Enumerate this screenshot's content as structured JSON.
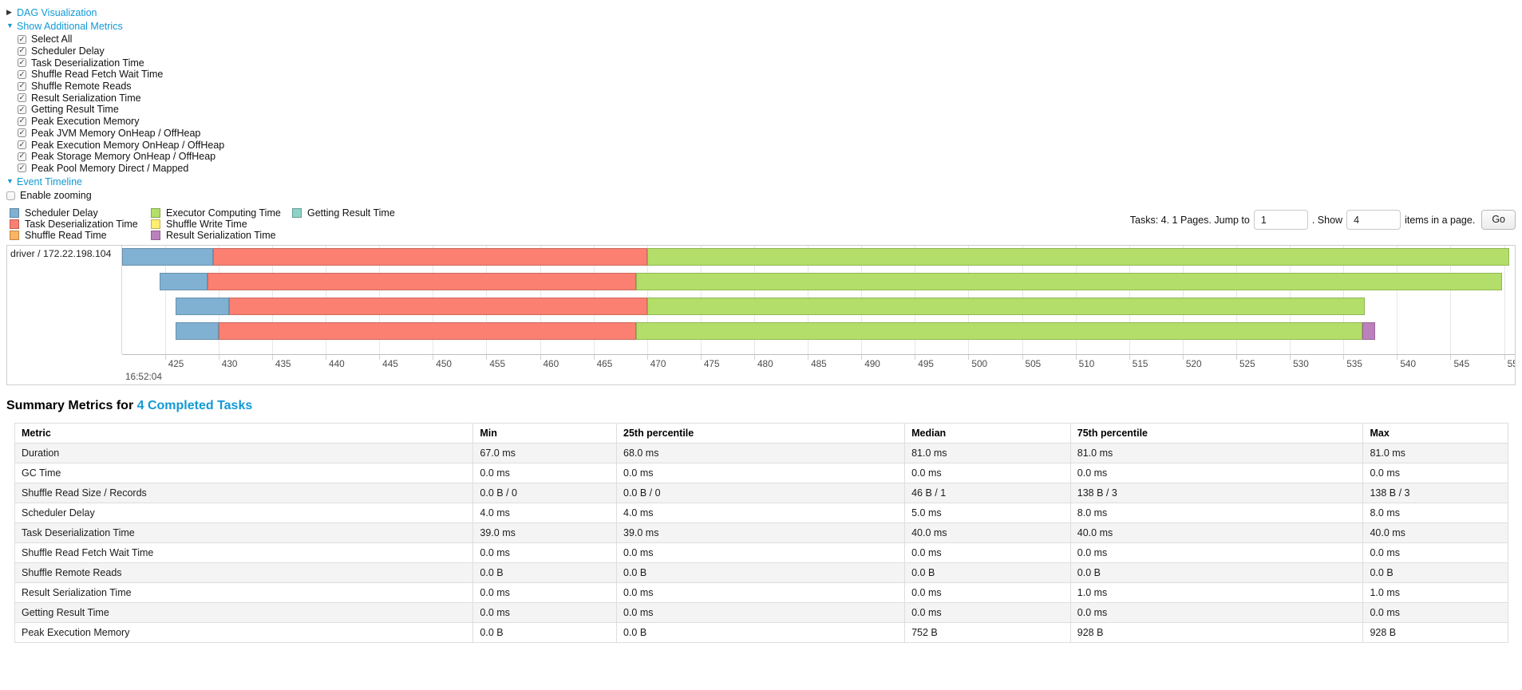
{
  "theme": {
    "link_color": "#1199d6"
  },
  "controls": {
    "dag_toggle": {
      "label": "DAG Visualization",
      "state": "collapsed"
    },
    "metrics_toggle": {
      "label": "Show Additional Metrics",
      "state": "expanded"
    },
    "metric_checkboxes": [
      {
        "label": "Select All",
        "checked": true
      },
      {
        "label": "Scheduler Delay",
        "checked": true
      },
      {
        "label": "Task Deserialization Time",
        "checked": true
      },
      {
        "label": "Shuffle Read Fetch Wait Time",
        "checked": true
      },
      {
        "label": "Shuffle Remote Reads",
        "checked": true
      },
      {
        "label": "Result Serialization Time",
        "checked": true
      },
      {
        "label": "Getting Result Time",
        "checked": true
      },
      {
        "label": "Peak Execution Memory",
        "checked": true
      },
      {
        "label": "Peak JVM Memory OnHeap / OffHeap",
        "checked": true
      },
      {
        "label": "Peak Execution Memory OnHeap / OffHeap",
        "checked": true
      },
      {
        "label": "Peak Storage Memory OnHeap / OffHeap",
        "checked": true
      },
      {
        "label": "Peak Pool Memory Direct / Mapped",
        "checked": true
      }
    ],
    "event_timeline_toggle": {
      "label": "Event Timeline",
      "state": "expanded"
    },
    "enable_zooming": {
      "label": "Enable zooming",
      "checked": false
    }
  },
  "pager": {
    "summary": "Tasks: 4. 1 Pages. Jump to",
    "jump_value": "1",
    "mid": ". Show",
    "show_value": "4",
    "suffix": "items in a page.",
    "go_label": "Go"
  },
  "legend": {
    "columns": [
      [
        {
          "label": "Scheduler Delay",
          "color": "#80B1D3"
        },
        {
          "label": "Task Deserialization Time",
          "color": "#FB8072"
        },
        {
          "label": "Shuffle Read Time",
          "color": "#FDB462"
        }
      ],
      [
        {
          "label": "Executor Computing Time",
          "color": "#B3DE69"
        },
        {
          "label": "Shuffle Write Time",
          "color": "#FFED6F"
        },
        {
          "label": "Result Serialization Time",
          "color": "#BC80BD"
        }
      ],
      [
        {
          "label": "Getting Result Time",
          "color": "#8DD3C7"
        }
      ]
    ]
  },
  "chart_data": {
    "type": "timeline-gantt",
    "group_label": "driver / 172.22.198.104",
    "axis": {
      "min": 421,
      "max": 551,
      "tick_start": 425,
      "tick_end": 550,
      "tick_step": 5,
      "major_label": "16:52:04",
      "units": "ms within second"
    },
    "colors": {
      "scheduler_delay": "#80B1D3",
      "task_deserialization": "#FB8072",
      "shuffle_read": "#FDB462",
      "executor_computing": "#B3DE69",
      "shuffle_write": "#FFED6F",
      "result_serialization": "#BC80BD",
      "getting_result": "#8DD3C7"
    },
    "tasks": [
      {
        "row": 0,
        "segments": [
          {
            "type": "scheduler_delay",
            "start": 421.0,
            "end": 429.5
          },
          {
            "type": "task_deserialization",
            "start": 429.5,
            "end": 470.0
          },
          {
            "type": "executor_computing",
            "start": 470.0,
            "end": 550.5
          }
        ]
      },
      {
        "row": 1,
        "segments": [
          {
            "type": "scheduler_delay",
            "start": 424.5,
            "end": 429.0
          },
          {
            "type": "task_deserialization",
            "start": 429.0,
            "end": 469.0
          },
          {
            "type": "executor_computing",
            "start": 469.0,
            "end": 549.8
          }
        ]
      },
      {
        "row": 2,
        "segments": [
          {
            "type": "scheduler_delay",
            "start": 426.0,
            "end": 431.0
          },
          {
            "type": "task_deserialization",
            "start": 431.0,
            "end": 470.0
          },
          {
            "type": "executor_computing",
            "start": 470.0,
            "end": 537.0
          }
        ]
      },
      {
        "row": 3,
        "segments": [
          {
            "type": "scheduler_delay",
            "start": 426.0,
            "end": 430.0
          },
          {
            "type": "task_deserialization",
            "start": 430.0,
            "end": 469.0
          },
          {
            "type": "executor_computing",
            "start": 469.0,
            "end": 536.8
          },
          {
            "type": "result_serialization",
            "start": 536.8,
            "end": 538.0
          }
        ]
      }
    ]
  },
  "summary": {
    "title_prefix": "Summary Metrics for ",
    "title_link": "4 Completed Tasks",
    "table": {
      "columns": [
        "Metric",
        "Min",
        "25th percentile",
        "Median",
        "75th percentile",
        "Max"
      ],
      "column_widths": [
        "30.7%",
        "9.6%",
        "19.3%",
        "11.1%",
        "19.6%",
        "9.7%"
      ],
      "rows": [
        [
          "Duration",
          "67.0 ms",
          "68.0 ms",
          "81.0 ms",
          "81.0 ms",
          "81.0 ms"
        ],
        [
          "GC Time",
          "0.0 ms",
          "0.0 ms",
          "0.0 ms",
          "0.0 ms",
          "0.0 ms"
        ],
        [
          "Shuffle Read Size / Records",
          "0.0 B / 0",
          "0.0 B / 0",
          "46 B / 1",
          "138 B / 3",
          "138 B / 3"
        ],
        [
          "Scheduler Delay",
          "4.0 ms",
          "4.0 ms",
          "5.0 ms",
          "8.0 ms",
          "8.0 ms"
        ],
        [
          "Task Deserialization Time",
          "39.0 ms",
          "39.0 ms",
          "40.0 ms",
          "40.0 ms",
          "40.0 ms"
        ],
        [
          "Shuffle Read Fetch Wait Time",
          "0.0 ms",
          "0.0 ms",
          "0.0 ms",
          "0.0 ms",
          "0.0 ms"
        ],
        [
          "Shuffle Remote Reads",
          "0.0 B",
          "0.0 B",
          "0.0 B",
          "0.0 B",
          "0.0 B"
        ],
        [
          "Result Serialization Time",
          "0.0 ms",
          "0.0 ms",
          "0.0 ms",
          "1.0 ms",
          "1.0 ms"
        ],
        [
          "Getting Result Time",
          "0.0 ms",
          "0.0 ms",
          "0.0 ms",
          "0.0 ms",
          "0.0 ms"
        ],
        [
          "Peak Execution Memory",
          "0.0 B",
          "0.0 B",
          "752 B",
          "928 B",
          "928 B"
        ]
      ]
    }
  }
}
